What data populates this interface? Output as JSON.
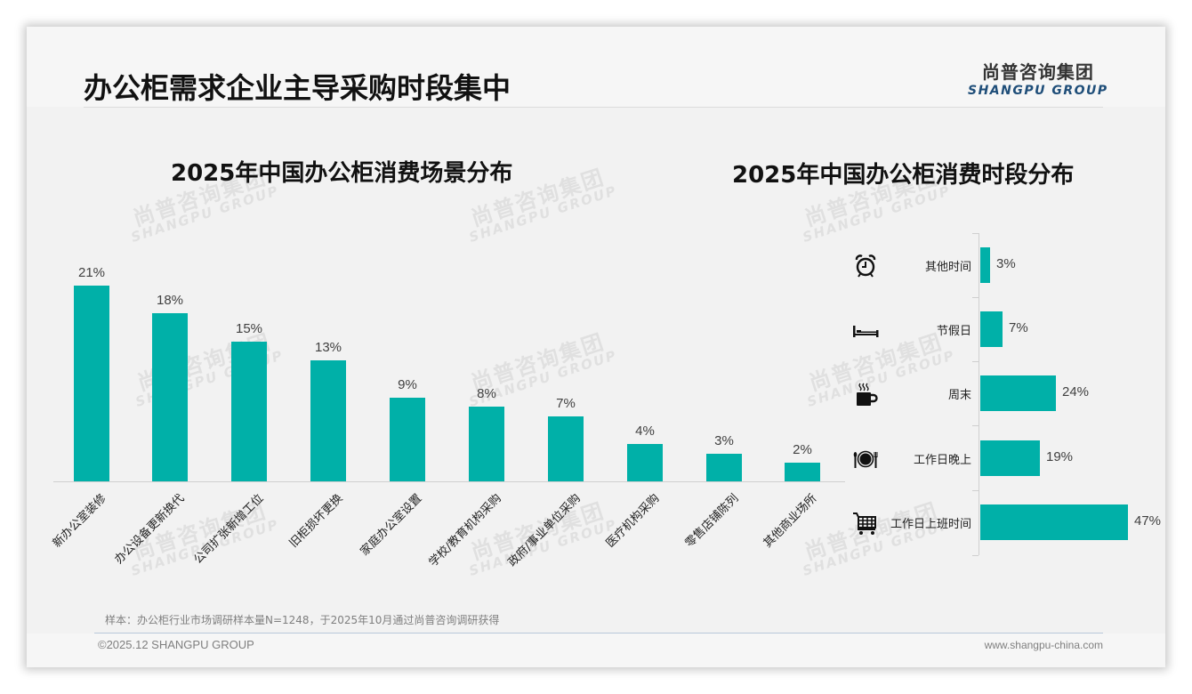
{
  "header": {
    "title": "办公柜需求企业主导采购时段集中",
    "logo_cn": "尚普咨询集团",
    "logo_en": "SHANGPU GROUP"
  },
  "watermark": {
    "cn": "尚普咨询集团",
    "en": "SHANGPU GROUP"
  },
  "colors": {
    "bar": "#00b0a8",
    "logo_en": "#1f4e79",
    "title": "#111111"
  },
  "chart_data": [
    {
      "type": "bar",
      "title": "2025年中国办公柜消费场景分布",
      "xlabel": "",
      "ylabel": "",
      "ylim": [
        0,
        22
      ],
      "grid": false,
      "legend": null,
      "categories": [
        "新办公室装修",
        "办公设备更新换代",
        "公司扩张新增工位",
        "旧柜损坏更换",
        "家庭办公室设置",
        "学校/教育机构采购",
        "政府/事业单位采购",
        "医疗机构采购",
        "零售店铺陈列",
        "其他商业场所"
      ],
      "values": [
        21,
        18,
        15,
        13,
        9,
        8,
        7,
        4,
        3,
        2
      ],
      "value_labels": [
        "21%",
        "18%",
        "15%",
        "13%",
        "9%",
        "8%",
        "7%",
        "4%",
        "3%",
        "2%"
      ],
      "unit": "%"
    },
    {
      "type": "bar",
      "orientation": "horizontal",
      "title": "2025年中国办公柜消费时段分布",
      "xlabel": "",
      "ylabel": "",
      "xlim": [
        0,
        47
      ],
      "grid": false,
      "legend": null,
      "categories": [
        "其他时间",
        "节假日",
        "周末",
        "工作日晚上",
        "工作日上班时间"
      ],
      "icons": [
        "alarm-clock-icon",
        "bed-icon",
        "coffee-cup-icon",
        "plate-cutlery-icon",
        "shopping-cart-icon"
      ],
      "values": [
        3,
        7,
        24,
        19,
        47
      ],
      "value_labels": [
        "3%",
        "7%",
        "24%",
        "19%",
        "47%"
      ],
      "unit": "%"
    }
  ],
  "footer": {
    "note": "样本：办公柜行业市场调研样本量N=1248，于2025年10月通过尚普咨询调研获得",
    "copyright": "©2025.12 SHANGPU GROUP",
    "website": "www.shangpu-china.com"
  }
}
